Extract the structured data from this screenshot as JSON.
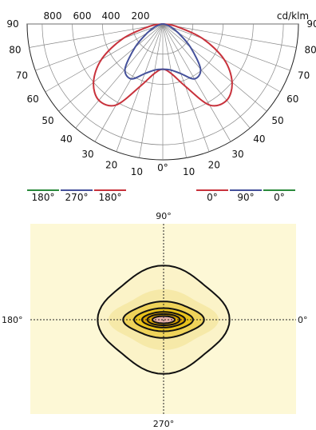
{
  "chart_data": [
    {
      "type": "polar",
      "unit": "cd/klm",
      "radial_ticks": [
        200,
        400,
        600,
        800
      ],
      "radial_tick_labels_top": [
        "800",
        "600",
        "400",
        "200"
      ],
      "rmax": 900,
      "angle_labels_left": [
        "90",
        "80",
        "70",
        "60",
        "50",
        "40",
        "30",
        "20",
        "10"
      ],
      "angle_labels_right": [
        "90",
        "80",
        "70",
        "60",
        "50",
        "40",
        "30",
        "20",
        "10"
      ],
      "angle_zero_label": "0°",
      "angles_deg": [
        0,
        10,
        20,
        30,
        40,
        50,
        60,
        70,
        80,
        90
      ],
      "series": [
        {
          "plane_left": "180°",
          "plane_right": "0°",
          "color": "#c8323c",
          "values": [
            300,
            335,
            440,
            620,
            660,
            600,
            470,
            280,
            90,
            0
          ]
        },
        {
          "plane_left": "270°",
          "plane_right": "90°",
          "color": "#44509a",
          "values": [
            300,
            310,
            350,
            420,
            390,
            240,
            120,
            55,
            15,
            0
          ]
        },
        {
          "plane_left": "180°",
          "plane_right": "0°",
          "color": "#2a8a3c",
          "values": [
            300,
            335,
            440,
            620,
            660,
            600,
            470,
            280,
            90,
            0
          ]
        }
      ],
      "legend_left": [
        {
          "label": "180°",
          "color": "#2a8a3c"
        },
        {
          "label": "270°",
          "color": "#44509a"
        },
        {
          "label": "180°",
          "color": "#c8323c"
        }
      ],
      "legend_right": [
        {
          "label": "0°",
          "color": "#c8323c"
        },
        {
          "label": "90°",
          "color": "#44509a"
        },
        {
          "label": "0°",
          "color": "#2a8a3c"
        }
      ]
    },
    {
      "type": "isolux",
      "axis_labels": {
        "top": "90°",
        "bottom": "270°",
        "left": "180°",
        "right": "0°"
      },
      "background": "#fdf8d6",
      "bands": [
        {
          "fill": "#fbf3c8",
          "rx": 1.0,
          "ry": 1.0,
          "wave": 0.06
        },
        {
          "fill": "#f6e9a8",
          "rx": 0.82,
          "ry": 0.55,
          "wave": 0.08
        },
        {
          "fill": "#efd35a",
          "rx": 0.62,
          "ry": 0.34,
          "wave": 0.05
        },
        {
          "fill": "#e8c21c",
          "rx": 0.46,
          "ry": 0.22,
          "wave": 0.03
        },
        {
          "fill": "#d9a300",
          "rx": 0.34,
          "ry": 0.15,
          "wave": 0.02
        },
        {
          "fill": "#e7b0a8",
          "rx": 0.18,
          "ry": 0.07,
          "wave": 0.0
        }
      ],
      "contours": [
        {
          "rx": 1.0,
          "ry": 1.0,
          "wave": 0.06
        },
        {
          "rx": 0.62,
          "ry": 0.34,
          "wave": 0.05
        },
        {
          "rx": 0.46,
          "ry": 0.22,
          "wave": 0.03
        },
        {
          "rx": 0.34,
          "ry": 0.15,
          "wave": 0.02
        },
        {
          "rx": 0.26,
          "ry": 0.11,
          "wave": 0.0
        },
        {
          "rx": 0.18,
          "ry": 0.07,
          "wave": 0.0
        }
      ]
    }
  ]
}
